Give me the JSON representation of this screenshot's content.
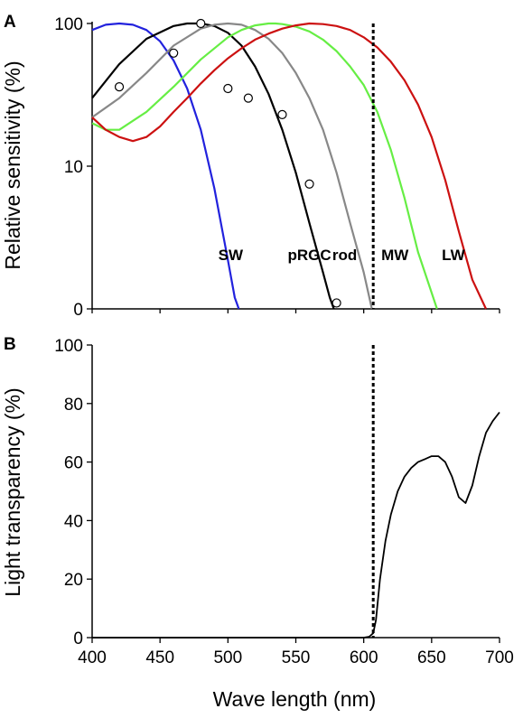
{
  "chart_data": [
    {
      "panel_label": "A",
      "type": "line",
      "ylabel": "Relative sensitivity (%)",
      "xlim": [
        400,
        700
      ],
      "yscale": "log",
      "ylim": [
        1,
        100
      ],
      "yticks": [
        {
          "value": 1,
          "label": "0"
        },
        {
          "value": 10,
          "label": "10"
        },
        {
          "value": 100,
          "label": "100"
        }
      ],
      "grid": false,
      "legend": "none",
      "reference_line": {
        "x": 607,
        "style": "dotted"
      },
      "series": [
        {
          "name": "SW",
          "color": "#2222dd",
          "label_at": [
            502,
            2.2
          ],
          "x": [
            400,
            410,
            420,
            430,
            440,
            450,
            460,
            470,
            480,
            490,
            500,
            505,
            508
          ],
          "y": [
            90,
            98,
            100,
            98,
            90,
            75,
            55,
            35,
            18,
            7,
            2.2,
            1.2,
            1.0
          ]
        },
        {
          "name": "pRGC",
          "color": "#000000",
          "label_at": [
            560,
            2.2
          ],
          "x": [
            400,
            420,
            440,
            460,
            470,
            480,
            490,
            500,
            510,
            520,
            530,
            540,
            550,
            560,
            570,
            575,
            578
          ],
          "y": [
            30,
            52,
            78,
            96,
            100,
            100,
            96,
            86,
            70,
            50,
            32,
            18,
            9,
            4,
            1.8,
            1.2,
            1.0
          ]
        },
        {
          "name": "rod",
          "color": "#888888",
          "label_at": [
            586,
            2.2
          ],
          "x": [
            400,
            420,
            440,
            460,
            480,
            490,
            500,
            510,
            520,
            530,
            540,
            550,
            560,
            570,
            580,
            590,
            600,
            606
          ],
          "y": [
            22,
            30,
            45,
            70,
            92,
            98,
            100,
            98,
            90,
            78,
            62,
            45,
            30,
            18,
            9,
            4,
            1.8,
            1.0
          ]
        },
        {
          "name": "MW",
          "color": "#66ee44",
          "label_at": [
            623,
            2.2
          ],
          "x": [
            400,
            410,
            420,
            440,
            460,
            480,
            500,
            510,
            520,
            530,
            535,
            540,
            550,
            560,
            570,
            580,
            590,
            600,
            610,
            620,
            630,
            640,
            650,
            654
          ],
          "y": [
            20,
            18,
            18,
            24,
            36,
            56,
            80,
            90,
            97,
            100,
            100,
            99,
            95,
            88,
            77,
            64,
            50,
            37,
            24,
            13,
            6,
            2.5,
            1.3,
            1.0
          ]
        },
        {
          "name": "LW",
          "color": "#cc1111",
          "label_at": [
            666,
            2.2
          ],
          "x": [
            400,
            410,
            420,
            430,
            440,
            450,
            460,
            470,
            480,
            490,
            500,
            510,
            520,
            530,
            540,
            550,
            560,
            570,
            580,
            590,
            600,
            610,
            620,
            630,
            640,
            650,
            660,
            670,
            680,
            690
          ],
          "y": [
            22,
            18,
            16,
            15,
            16,
            19,
            24,
            30,
            38,
            47,
            57,
            67,
            77,
            85,
            92,
            97,
            100,
            99,
            96,
            90,
            80,
            68,
            54,
            40,
            27,
            16,
            8,
            3.5,
            1.6,
            1.0
          ]
        }
      ],
      "markers": {
        "style": "open-circle",
        "x": [
          420,
          460,
          480,
          500,
          515,
          540,
          560,
          580
        ],
        "y": [
          36,
          62,
          100,
          35,
          30,
          23,
          7.5,
          1.1
        ]
      }
    },
    {
      "panel_label": "B",
      "type": "line",
      "xlabel": "Wave length (nm)",
      "ylabel": "Light transparency (%)",
      "xlim": [
        400,
        700
      ],
      "ylim": [
        0,
        100
      ],
      "xticks": [
        400,
        450,
        500,
        550,
        600,
        650,
        700
      ],
      "yticks": [
        0,
        20,
        40,
        60,
        80,
        100
      ],
      "grid": false,
      "legend": "none",
      "reference_line": {
        "x": 607,
        "style": "dotted"
      },
      "series": [
        {
          "color": "#000000",
          "x": [
            400,
            600,
            604,
            607,
            609,
            612,
            616,
            620,
            625,
            630,
            635,
            640,
            645,
            650,
            655,
            660,
            665,
            670,
            675,
            680,
            685,
            690,
            695,
            700
          ],
          "y": [
            0,
            0,
            0.3,
            1.5,
            6,
            20,
            33,
            42,
            50,
            55,
            58,
            60,
            61,
            62,
            62,
            60,
            55,
            48,
            46,
            52,
            62,
            70,
            74,
            77
          ]
        }
      ]
    }
  ]
}
